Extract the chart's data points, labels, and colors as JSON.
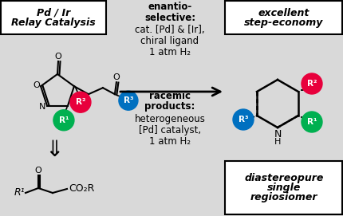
{
  "bg_color": "#d9d9d9",
  "box1_lines": [
    "Pd / Ir",
    "Relay Catalysis"
  ],
  "box2_lines": [
    "excellent",
    "step-economy"
  ],
  "box3_lines": [
    "diastereopure",
    "single",
    "regiosiomer"
  ],
  "center_top": [
    "enantio-",
    "selective:",
    "cat. [Pd] & [Ir],",
    "chiral ligand",
    "1 atm H₂"
  ],
  "center_bot": [
    "racemic",
    "products:",
    "heterogeneous",
    "[Pd] catalyst,",
    "1 atm H₂"
  ],
  "red": "#e8003c",
  "green": "#00b050",
  "blue": "#0070c0",
  "figw": 4.31,
  "figh": 2.71,
  "dpi": 100
}
